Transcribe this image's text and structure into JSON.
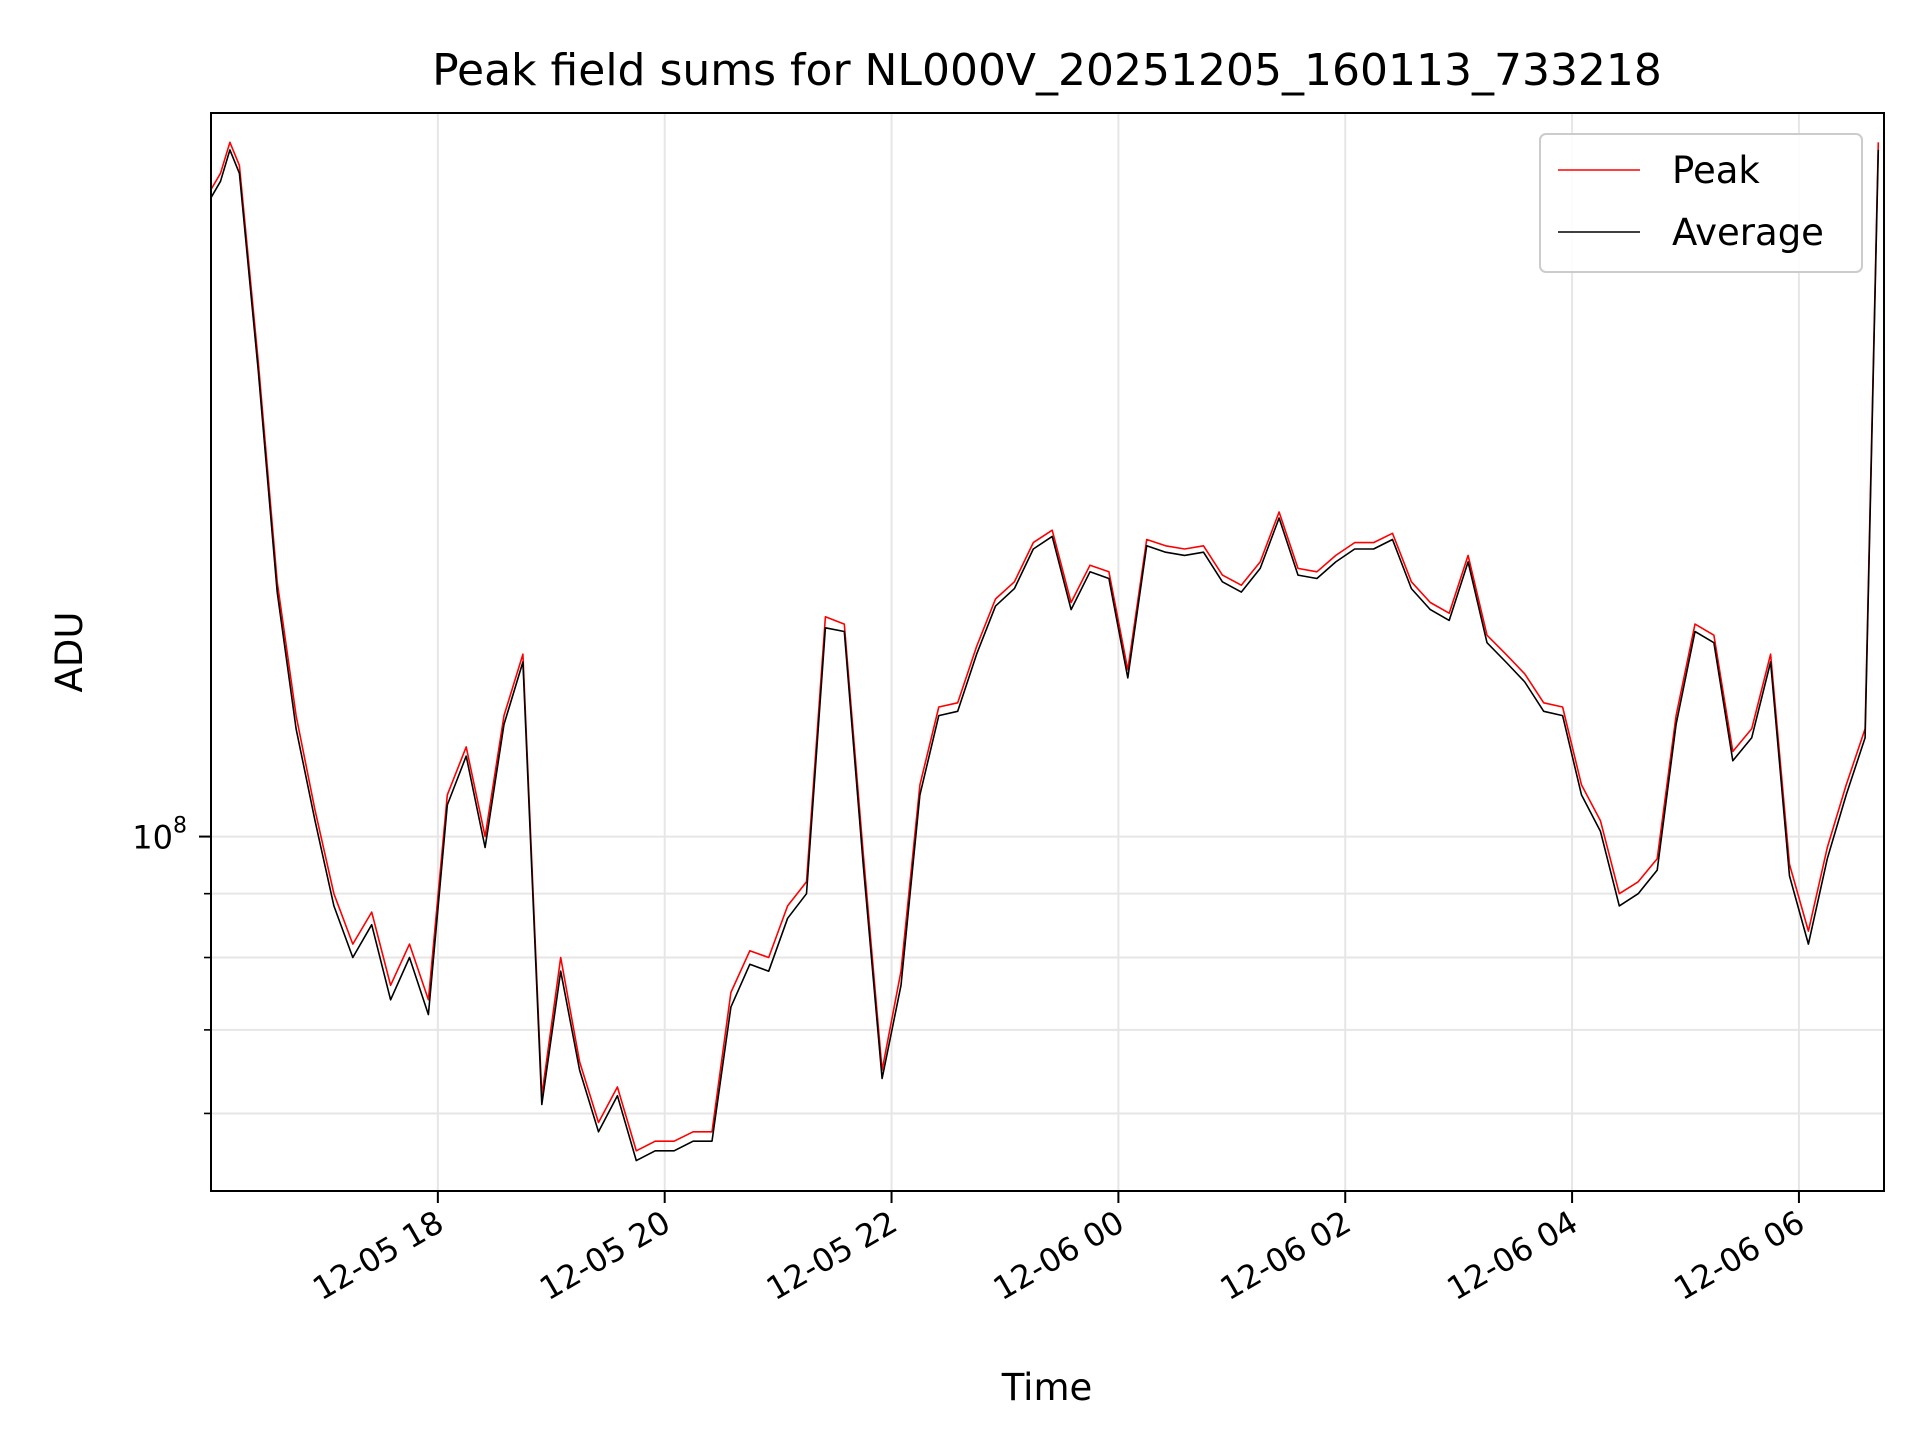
{
  "chart_data": {
    "type": "line",
    "title": "Peak field sums for NL000V_20251205_160113_733218",
    "xlabel": "Time",
    "ylabel": "ADU",
    "yscale": "log",
    "xlim": [
      "2025-12-05 16:00",
      "2025-12-06 06:45"
    ],
    "ylim": [
      52000000,
      380000000
    ],
    "grid": true,
    "legend": "top-right",
    "x_ticks": [
      "12-05 18",
      "12-05 20",
      "12-05 22",
      "12-06 00",
      "12-06 02",
      "12-06 04",
      "12-06 06"
    ],
    "y_tick_label": {
      "base": "10",
      "exp": "8",
      "value": 100000000
    },
    "y_minor_ticks": [
      60000000,
      70000000,
      80000000,
      90000000
    ],
    "x": [
      "2025-12-05 16:00",
      "2025-12-05 16:05",
      "2025-12-05 16:10",
      "2025-12-05 16:15",
      "2025-12-05 16:25",
      "2025-12-05 16:35",
      "2025-12-05 16:45",
      "2025-12-05 16:55",
      "2025-12-05 17:05",
      "2025-12-05 17:15",
      "2025-12-05 17:25",
      "2025-12-05 17:35",
      "2025-12-05 17:45",
      "2025-12-05 17:55",
      "2025-12-05 18:05",
      "2025-12-05 18:15",
      "2025-12-05 18:25",
      "2025-12-05 18:35",
      "2025-12-05 18:45",
      "2025-12-05 18:55",
      "2025-12-05 19:05",
      "2025-12-05 19:15",
      "2025-12-05 19:25",
      "2025-12-05 19:35",
      "2025-12-05 19:45",
      "2025-12-05 19:55",
      "2025-12-05 20:05",
      "2025-12-05 20:15",
      "2025-12-05 20:25",
      "2025-12-05 20:35",
      "2025-12-05 20:45",
      "2025-12-05 20:55",
      "2025-12-05 21:05",
      "2025-12-05 21:15",
      "2025-12-05 21:25",
      "2025-12-05 21:35",
      "2025-12-05 21:45",
      "2025-12-05 21:55",
      "2025-12-05 22:05",
      "2025-12-05 22:15",
      "2025-12-05 22:25",
      "2025-12-05 22:35",
      "2025-12-05 22:45",
      "2025-12-05 22:55",
      "2025-12-05 23:05",
      "2025-12-05 23:15",
      "2025-12-05 23:25",
      "2025-12-05 23:35",
      "2025-12-05 23:45",
      "2025-12-05 23:55",
      "2025-12-06 00:05",
      "2025-12-06 00:15",
      "2025-12-06 00:25",
      "2025-12-06 00:35",
      "2025-12-06 00:45",
      "2025-12-06 00:55",
      "2025-12-06 01:05",
      "2025-12-06 01:15",
      "2025-12-06 01:25",
      "2025-12-06 01:35",
      "2025-12-06 01:45",
      "2025-12-06 01:55",
      "2025-12-06 02:05",
      "2025-12-06 02:15",
      "2025-12-06 02:25",
      "2025-12-06 02:35",
      "2025-12-06 02:45",
      "2025-12-06 02:55",
      "2025-12-06 03:05",
      "2025-12-06 03:15",
      "2025-12-06 03:25",
      "2025-12-06 03:35",
      "2025-12-06 03:45",
      "2025-12-06 03:55",
      "2025-12-06 04:05",
      "2025-12-06 04:15",
      "2025-12-06 04:25",
      "2025-12-06 04:35",
      "2025-12-06 04:45",
      "2025-12-06 04:55",
      "2025-12-06 05:05",
      "2025-12-06 05:15",
      "2025-12-06 05:25",
      "2025-12-06 05:35",
      "2025-12-06 05:45",
      "2025-12-06 05:55",
      "2025-12-06 06:05",
      "2025-12-06 06:15",
      "2025-12-06 06:25",
      "2025-12-06 06:35",
      "2025-12-06 06:42"
    ],
    "series": [
      {
        "name": "Peak",
        "color": "#ff0000",
        "values": [
          330000000,
          340000000,
          360000000,
          345000000,
          240000000,
          160000000,
          125000000,
          105000000,
          90000000,
          82000000,
          87000000,
          76000000,
          82000000,
          74000000,
          108000000,
          118000000,
          100000000,
          125000000,
          140000000,
          62000000,
          80000000,
          66000000,
          59000000,
          63000000,
          56000000,
          57000000,
          57000000,
          58000000,
          58000000,
          75000000,
          81000000,
          80000000,
          88000000,
          92000000,
          150000000,
          148000000,
          97000000,
          65000000,
          78000000,
          110000000,
          127000000,
          128000000,
          142000000,
          155000000,
          160000000,
          172000000,
          176000000,
          154000000,
          165000000,
          163000000,
          136000000,
          173000000,
          171000000,
          170000000,
          171000000,
          162000000,
          159000000,
          166000000,
          182000000,
          164000000,
          163000000,
          168000000,
          172000000,
          172000000,
          175000000,
          160000000,
          154000000,
          151000000,
          168000000,
          145000000,
          140000000,
          135000000,
          128000000,
          127000000,
          110000000,
          103000000,
          90000000,
          92000000,
          96000000,
          125000000,
          148000000,
          145000000,
          117000000,
          122000000,
          140000000,
          95000000,
          84000000,
          98000000,
          110000000,
          122000000,
          360000000
        ]
      },
      {
        "name": "Average",
        "color": "#000000",
        "values": [
          325000000,
          335000000,
          355000000,
          340000000,
          236000000,
          157000000,
          122000000,
          103000000,
          88000000,
          80000000,
          85000000,
          74000000,
          80000000,
          72000000,
          106000000,
          116000000,
          98000000,
          123000000,
          138000000,
          61000000,
          78000000,
          65000000,
          58000000,
          62000000,
          55000000,
          56000000,
          56000000,
          57000000,
          57000000,
          73000000,
          79000000,
          78000000,
          86000000,
          90000000,
          147000000,
          146000000,
          95000000,
          64000000,
          76000000,
          108000000,
          125000000,
          126000000,
          140000000,
          153000000,
          158000000,
          170000000,
          174000000,
          152000000,
          163000000,
          161000000,
          134000000,
          171000000,
          169000000,
          168000000,
          169000000,
          160000000,
          157000000,
          164000000,
          180000000,
          162000000,
          161000000,
          166000000,
          170000000,
          170000000,
          173000000,
          158000000,
          152000000,
          149000000,
          166000000,
          143000000,
          138000000,
          133000000,
          126000000,
          125000000,
          108000000,
          101000000,
          88000000,
          90000000,
          94000000,
          123000000,
          146000000,
          143000000,
          115000000,
          120000000,
          138000000,
          93000000,
          82000000,
          96000000,
          108000000,
          120000000,
          355000000
        ]
      }
    ]
  }
}
